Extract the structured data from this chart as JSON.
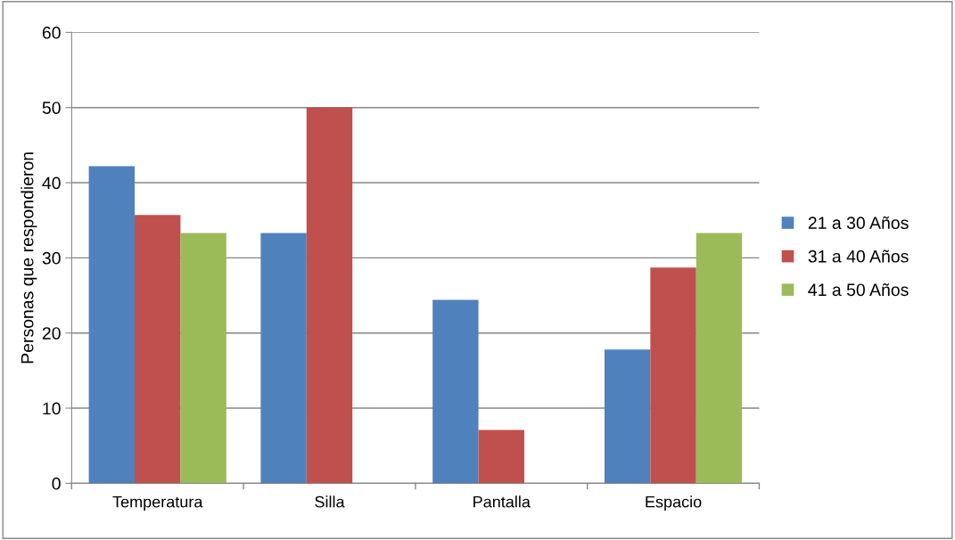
{
  "chart_data": {
    "type": "bar",
    "ylabel": "Personas que respondieron",
    "categories": [
      "Temperatura",
      "Silla",
      "Pantalla",
      "Espacio"
    ],
    "series": [
      {
        "name": "21 a 30 Años",
        "color": "#4f81bd",
        "values": [
          42.2,
          33.3,
          24.4,
          17.8
        ]
      },
      {
        "name": "31 a 40 Años",
        "color": "#c0504d",
        "values": [
          35.7,
          50,
          7.1,
          28.7
        ]
      },
      {
        "name": "41 a 50 Años",
        "color": "#9bbb59",
        "values": [
          33.3,
          0,
          0,
          33.3
        ]
      }
    ],
    "ylim": [
      0,
      60
    ],
    "yticks": [
      0,
      10,
      20,
      30,
      40,
      50,
      60
    ],
    "grid": "y",
    "legend": "right"
  }
}
